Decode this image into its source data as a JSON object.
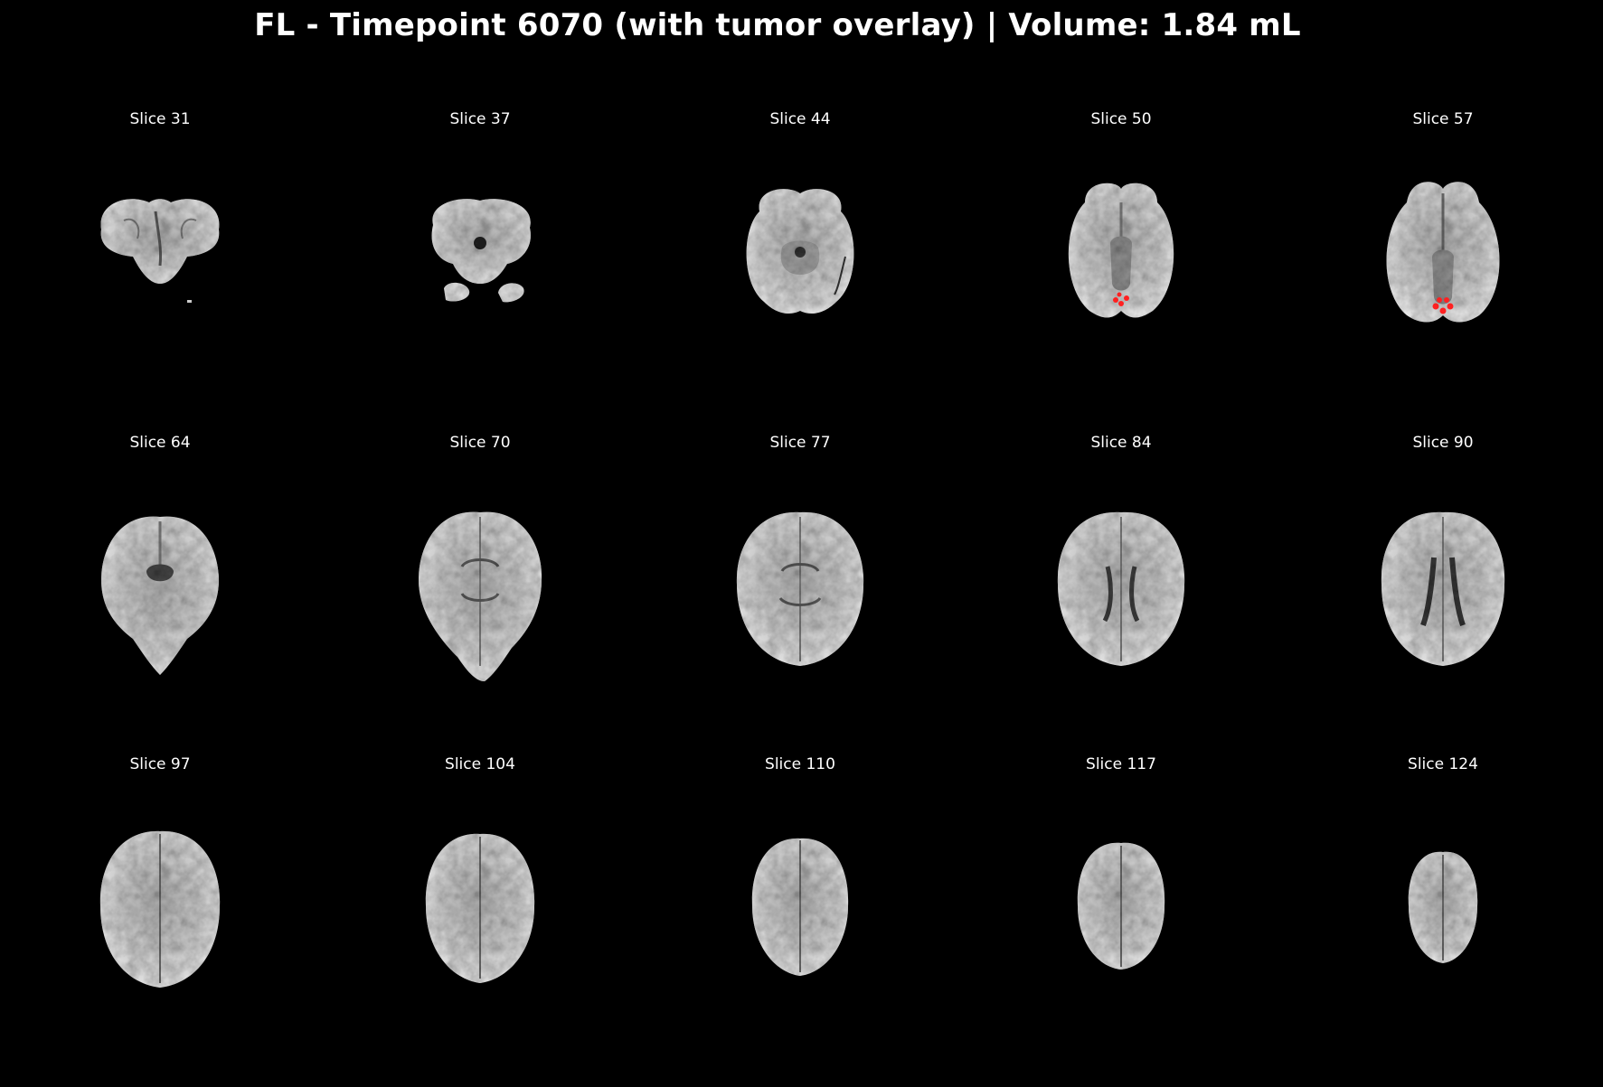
{
  "figure": {
    "title": "FL - Timepoint 6070 (with tumor overlay) | Volume: 1.84 mL",
    "overlay_color": "#ff2020"
  },
  "panels": [
    {
      "label": "Slice 31"
    },
    {
      "label": "Slice 37"
    },
    {
      "label": "Slice 44"
    },
    {
      "label": "Slice 50"
    },
    {
      "label": "Slice 57"
    },
    {
      "label": "Slice 64"
    },
    {
      "label": "Slice 70"
    },
    {
      "label": "Slice 77"
    },
    {
      "label": "Slice 84"
    },
    {
      "label": "Slice 90"
    },
    {
      "label": "Slice 97"
    },
    {
      "label": "Slice 104"
    },
    {
      "label": "Slice 110"
    },
    {
      "label": "Slice 117"
    },
    {
      "label": "Slice 124"
    }
  ]
}
